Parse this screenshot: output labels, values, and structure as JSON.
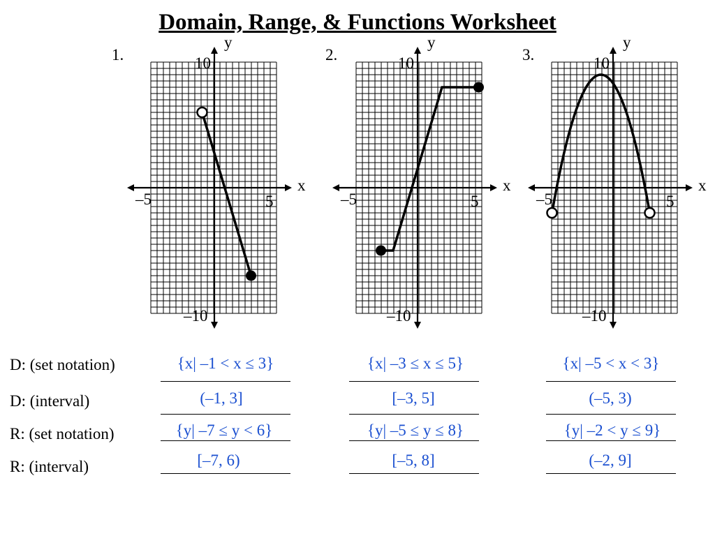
{
  "title": "Domain, Range, & Functions Worksheet",
  "problems": [
    {
      "number": "1.",
      "axis": {
        "x_label": "x",
        "y_label": "y",
        "x_min_label": "–5",
        "x_max_label": "5",
        "y_max_label": "10",
        "y_min_label": "–10"
      },
      "graph": {
        "type": "segment",
        "points": [
          [
            -1,
            6
          ],
          [
            3,
            -7
          ]
        ],
        "open": [
          [
            -1,
            6
          ]
        ],
        "closed": [
          [
            3,
            -7
          ]
        ]
      }
    },
    {
      "number": "2.",
      "axis": {
        "x_label": "x",
        "y_label": "y",
        "x_min_label": "–5",
        "x_max_label": "5",
        "y_max_label": "10",
        "y_min_label": "–10"
      },
      "graph": {
        "type": "polyline",
        "points": [
          [
            -3,
            -5
          ],
          [
            -2,
            -5
          ],
          [
            2,
            8
          ],
          [
            5,
            8
          ]
        ],
        "open": [],
        "closed": [
          [
            -3,
            -5
          ],
          [
            5,
            8
          ]
        ]
      }
    },
    {
      "number": "3.",
      "axis": {
        "x_label": "x",
        "y_label": "y",
        "x_min_label": "–5",
        "x_max_label": "5",
        "y_max_label": "10",
        "y_min_label": "–10"
      },
      "graph": {
        "type": "parabola",
        "vertex": [
          -1,
          9
        ],
        "endpoints": [
          [
            -5,
            -2
          ],
          [
            3,
            -2
          ]
        ],
        "open": [
          [
            -5,
            -2
          ],
          [
            3,
            -2
          ]
        ],
        "closed": []
      }
    }
  ],
  "rows": [
    {
      "label": "D:  (set notation)",
      "answers": [
        "{x| –1 < x ≤ 3}",
        "{x| –3 ≤ x ≤ 5}",
        "{x| –5 < x < 3}"
      ]
    },
    {
      "label": "D:  (interval)",
      "answers": [
        "(–1, 3]",
        "[–3, 5]",
        "(–5, 3)"
      ]
    },
    {
      "label": "R:  (set notation)",
      "answers": [
        "{y| –7 ≤ y < 6}",
        "{y| –5 ≤ y ≤ 8}",
        "{y| –2 < y ≤ 9}"
      ]
    },
    {
      "label": "R:  (interval)",
      "answers": [
        "[–7, 6)",
        "[–5, 8]",
        "(–2, 9]"
      ]
    }
  ],
  "colors": {
    "answer": "#1a4fd0",
    "ink": "#000000",
    "background": "#ffffff"
  }
}
